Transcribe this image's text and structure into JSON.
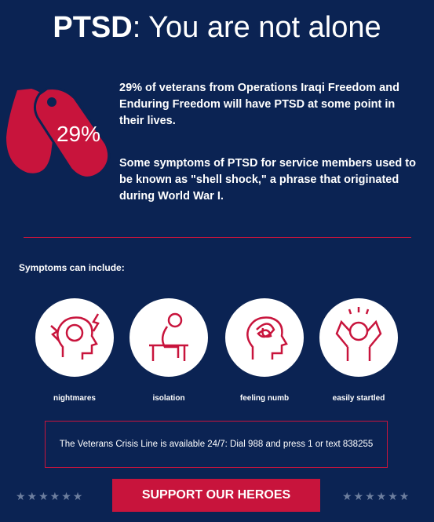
{
  "header": {
    "title_bold": "PTSD",
    "title_rest": ": You are not alone"
  },
  "stat": {
    "badge": "29%",
    "paragraphs": [
      "29% of veterans from Operations Iraqi Freedom and Enduring Freedom will have PTSD at some point in their lives.",
      "Some symptoms of PTSD for service members used to be known as \"shell shock,\" a phrase that originated during World War I."
    ]
  },
  "symptoms": {
    "heading": "Symptoms can include:",
    "items": [
      "nightmares",
      "isolation",
      "feeling numb",
      "easily startled"
    ]
  },
  "crisis": {
    "text": "The Veterans Crisis Line is available 24/7: Dial 988 and press 1 or text 838255"
  },
  "cta": {
    "button": "SUPPORT OUR HEROES"
  }
}
